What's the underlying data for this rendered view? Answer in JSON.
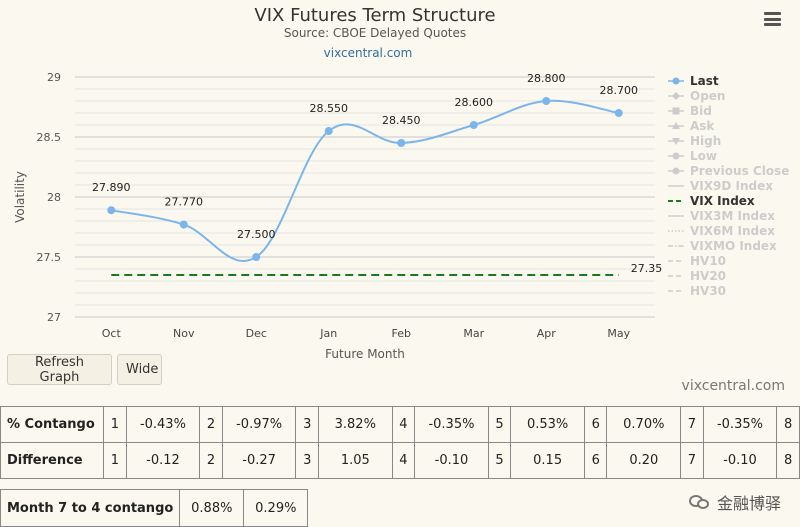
{
  "header": {
    "title": "VIX Futures Term Structure",
    "subtitle": "Source: CBOE Delayed Quotes",
    "site": "vixcentral.com"
  },
  "chart_data": {
    "type": "line",
    "title": "VIX Futures Term Structure",
    "subtitle": "Source: CBOE Delayed Quotes",
    "xlabel": "Future Month",
    "ylabel": "Volatility",
    "categories": [
      "Oct",
      "Nov",
      "Dec",
      "Jan",
      "Feb",
      "Mar",
      "Apr",
      "May"
    ],
    "ylim": [
      27,
      29
    ],
    "yticks": [
      "27",
      "27.5",
      "28",
      "28.5",
      "29"
    ],
    "grid": true,
    "legend_position": "right",
    "series": [
      {
        "name": "Last",
        "values": [
          27.89,
          27.77,
          27.5,
          28.55,
          28.45,
          28.6,
          28.8,
          28.7
        ],
        "labels": [
          "27.890",
          "27.770",
          "27.500",
          "28.550",
          "28.450",
          "28.600",
          "28.800",
          "28.700"
        ],
        "color": "#7cb5ec"
      },
      {
        "name": "VIX Index",
        "value": 27.35,
        "label": "27.35",
        "color": "#1b7a1b",
        "style": "dashed"
      }
    ],
    "legend": [
      {
        "name": "Last",
        "active": true,
        "symbol": "line-circle",
        "color": "#7cb5ec"
      },
      {
        "name": "Open",
        "active": false,
        "symbol": "line-diamond"
      },
      {
        "name": "Bid",
        "active": false,
        "symbol": "line-square"
      },
      {
        "name": "Ask",
        "active": false,
        "symbol": "line-triangle"
      },
      {
        "name": "High",
        "active": false,
        "symbol": "line-triangle-down"
      },
      {
        "name": "Low",
        "active": false,
        "symbol": "line-circle"
      },
      {
        "name": "Previous Close",
        "active": false,
        "symbol": "line-circle"
      },
      {
        "name": "VIX9D Index",
        "active": false,
        "symbol": "line"
      },
      {
        "name": "VIX Index",
        "active": true,
        "symbol": "dash",
        "color": "#1b7a1b"
      },
      {
        "name": "VIX3M Index",
        "active": false,
        "symbol": "line"
      },
      {
        "name": "VIX6M Index",
        "active": false,
        "symbol": "dot"
      },
      {
        "name": "VIXMO Index",
        "active": false,
        "symbol": "dashdot"
      },
      {
        "name": "HV10",
        "active": false,
        "symbol": "dash"
      },
      {
        "name": "HV20",
        "active": false,
        "symbol": "dash"
      },
      {
        "name": "HV30",
        "active": false,
        "symbol": "dash"
      }
    ]
  },
  "controls": {
    "refresh_label": "Refresh Graph",
    "wide_label": "Wide"
  },
  "credit": "vixcentral.com",
  "tables": {
    "contango": {
      "label": "% Contango",
      "cells": [
        {
          "n": "1",
          "v": "-0.43%"
        },
        {
          "n": "2",
          "v": "-0.97%"
        },
        {
          "n": "3",
          "v": "3.82%"
        },
        {
          "n": "4",
          "v": "-0.35%"
        },
        {
          "n": "5",
          "v": "0.53%"
        },
        {
          "n": "6",
          "v": "0.70%"
        },
        {
          "n": "7",
          "v": "-0.35%"
        },
        {
          "n": "8",
          "v": ""
        }
      ]
    },
    "difference": {
      "label": "Difference",
      "cells": [
        {
          "n": "1",
          "v": "-0.12"
        },
        {
          "n": "2",
          "v": "-0.27"
        },
        {
          "n": "3",
          "v": "1.05"
        },
        {
          "n": "4",
          "v": "-0.10"
        },
        {
          "n": "5",
          "v": "0.15"
        },
        {
          "n": "6",
          "v": "0.20"
        },
        {
          "n": "7",
          "v": "-0.10"
        },
        {
          "n": "8",
          "v": ""
        }
      ]
    },
    "month_contango": {
      "label": "Month 7 to 4 contango",
      "values": [
        "0.88%",
        "0.29%"
      ]
    }
  },
  "watermark": "金融博驿"
}
